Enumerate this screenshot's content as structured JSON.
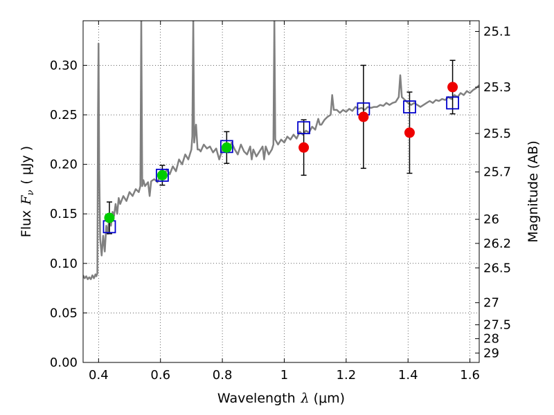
{
  "chart_data": {
    "type": "scatter",
    "xlabel": {
      "prefix": "Wavelength",
      "symbol": "λ",
      "unit": "(μm)"
    },
    "ylabel": {
      "prefix": "Flux",
      "symbol": "F",
      "subscript": "ν",
      "unit": "( μJy )"
    },
    "ylabel_right": "Magnitude (AB)",
    "xlim": [
      0.35,
      1.63
    ],
    "ylim": [
      0.0,
      0.345
    ],
    "grid": true,
    "x_ticks": [
      {
        "value": 0.4,
        "label": "0.4"
      },
      {
        "value": 0.6,
        "label": "0.6"
      },
      {
        "value": 0.8,
        "label": "0.8"
      },
      {
        "value": 1.0,
        "label": "1"
      },
      {
        "value": 1.2,
        "label": "1.2"
      },
      {
        "value": 1.4,
        "label": "1.4"
      },
      {
        "value": 1.6,
        "label": "1.6"
      }
    ],
    "y_ticks": [
      {
        "value": 0.0,
        "label": "0.00"
      },
      {
        "value": 0.05,
        "label": "0.05"
      },
      {
        "value": 0.1,
        "label": "0.10"
      },
      {
        "value": 0.15,
        "label": "0.15"
      },
      {
        "value": 0.2,
        "label": "0.20"
      },
      {
        "value": 0.25,
        "label": "0.25"
      },
      {
        "value": 0.3,
        "label": "0.30"
      }
    ],
    "right_ticks": [
      {
        "flux": 0.3342,
        "label": "25.1"
      },
      {
        "flux": 0.2779,
        "label": "25.3"
      },
      {
        "flux": 0.2312,
        "label": "25.5"
      },
      {
        "flux": 0.1923,
        "label": "25.7"
      },
      {
        "flux": 0.1445,
        "label": "26"
      },
      {
        "flux": 0.1202,
        "label": "26.2"
      },
      {
        "flux": 0.0955,
        "label": "26.5"
      },
      {
        "flux": 0.0603,
        "label": "27"
      },
      {
        "flux": 0.038,
        "label": "27.5"
      },
      {
        "flux": 0.024,
        "label": "28"
      },
      {
        "flux": 0.0095,
        "label": "29"
      }
    ],
    "spectrum": {
      "color": "#808080",
      "points": [
        [
          0.35,
          0.088
        ],
        [
          0.355,
          0.085
        ],
        [
          0.36,
          0.087
        ],
        [
          0.365,
          0.084
        ],
        [
          0.37,
          0.086
        ],
        [
          0.375,
          0.084
        ],
        [
          0.38,
          0.088
        ],
        [
          0.385,
          0.085
        ],
        [
          0.39,
          0.089
        ],
        [
          0.393,
          0.087
        ],
        [
          0.396,
          0.09
        ],
        [
          0.398,
          0.25
        ],
        [
          0.4,
          0.322
        ],
        [
          0.402,
          0.2
        ],
        [
          0.405,
          0.125
        ],
        [
          0.41,
          0.108
        ],
        [
          0.415,
          0.128
        ],
        [
          0.42,
          0.112
        ],
        [
          0.425,
          0.138
        ],
        [
          0.43,
          0.13
        ],
        [
          0.435,
          0.15
        ],
        [
          0.44,
          0.138
        ],
        [
          0.445,
          0.152
        ],
        [
          0.45,
          0.148
        ],
        [
          0.455,
          0.16
        ],
        [
          0.46,
          0.15
        ],
        [
          0.465,
          0.166
        ],
        [
          0.47,
          0.16
        ],
        [
          0.48,
          0.168
        ],
        [
          0.49,
          0.163
        ],
        [
          0.5,
          0.172
        ],
        [
          0.51,
          0.168
        ],
        [
          0.52,
          0.175
        ],
        [
          0.53,
          0.172
        ],
        [
          0.535,
          0.178
        ],
        [
          0.538,
          0.345
        ],
        [
          0.541,
          0.178
        ],
        [
          0.545,
          0.184
        ],
        [
          0.55,
          0.178
        ],
        [
          0.56,
          0.182
        ],
        [
          0.565,
          0.168
        ],
        [
          0.57,
          0.183
        ],
        [
          0.58,
          0.185
        ],
        [
          0.59,
          0.182
        ],
        [
          0.6,
          0.19
        ],
        [
          0.61,
          0.186
        ],
        [
          0.62,
          0.195
        ],
        [
          0.63,
          0.19
        ],
        [
          0.64,
          0.198
        ],
        [
          0.65,
          0.193
        ],
        [
          0.66,
          0.205
        ],
        [
          0.67,
          0.2
        ],
        [
          0.68,
          0.21
        ],
        [
          0.69,
          0.205
        ],
        [
          0.7,
          0.215
        ],
        [
          0.703,
          0.228
        ],
        [
          0.706,
          0.345
        ],
        [
          0.709,
          0.222
        ],
        [
          0.715,
          0.24
        ],
        [
          0.72,
          0.215
        ],
        [
          0.725,
          0.215
        ],
        [
          0.73,
          0.213
        ],
        [
          0.74,
          0.22
        ],
        [
          0.75,
          0.216
        ],
        [
          0.76,
          0.218
        ],
        [
          0.77,
          0.212
        ],
        [
          0.78,
          0.216
        ],
        [
          0.79,
          0.205
        ],
        [
          0.8,
          0.215
        ],
        [
          0.81,
          0.218
        ],
        [
          0.82,
          0.212
        ],
        [
          0.83,
          0.222
        ],
        [
          0.84,
          0.215
        ],
        [
          0.85,
          0.21
        ],
        [
          0.86,
          0.22
        ],
        [
          0.87,
          0.213
        ],
        [
          0.88,
          0.21
        ],
        [
          0.89,
          0.218
        ],
        [
          0.895,
          0.205
        ],
        [
          0.9,
          0.215
        ],
        [
          0.91,
          0.208
        ],
        [
          0.92,
          0.213
        ],
        [
          0.93,
          0.218
        ],
        [
          0.935,
          0.205
        ],
        [
          0.94,
          0.218
        ],
        [
          0.95,
          0.21
        ],
        [
          0.96,
          0.215
        ],
        [
          0.965,
          0.22
        ],
        [
          0.968,
          0.345
        ],
        [
          0.971,
          0.225
        ],
        [
          0.98,
          0.22
        ],
        [
          0.99,
          0.225
        ],
        [
          1.0,
          0.222
        ],
        [
          1.01,
          0.228
        ],
        [
          1.02,
          0.225
        ],
        [
          1.03,
          0.23
        ],
        [
          1.04,
          0.226
        ],
        [
          1.05,
          0.233
        ],
        [
          1.06,
          0.23
        ],
        [
          1.07,
          0.234
        ],
        [
          1.08,
          0.232
        ],
        [
          1.09,
          0.238
        ],
        [
          1.1,
          0.235
        ],
        [
          1.11,
          0.246
        ],
        [
          1.115,
          0.24
        ],
        [
          1.12,
          0.24
        ],
        [
          1.13,
          0.245
        ],
        [
          1.14,
          0.248
        ],
        [
          1.15,
          0.25
        ],
        [
          1.155,
          0.27
        ],
        [
          1.16,
          0.255
        ],
        [
          1.17,
          0.255
        ],
        [
          1.18,
          0.252
        ],
        [
          1.19,
          0.255
        ],
        [
          1.2,
          0.253
        ],
        [
          1.21,
          0.256
        ],
        [
          1.22,
          0.254
        ],
        [
          1.23,
          0.258
        ],
        [
          1.24,
          0.256
        ],
        [
          1.25,
          0.257
        ],
        [
          1.26,
          0.255
        ],
        [
          1.27,
          0.258
        ],
        [
          1.28,
          0.257
        ],
        [
          1.29,
          0.258
        ],
        [
          1.3,
          0.258
        ],
        [
          1.31,
          0.26
        ],
        [
          1.32,
          0.259
        ],
        [
          1.33,
          0.262
        ],
        [
          1.34,
          0.26
        ],
        [
          1.35,
          0.262
        ],
        [
          1.36,
          0.263
        ],
        [
          1.37,
          0.268
        ],
        [
          1.375,
          0.29
        ],
        [
          1.38,
          0.268
        ],
        [
          1.39,
          0.265
        ],
        [
          1.4,
          0.262
        ],
        [
          1.41,
          0.26
        ],
        [
          1.42,
          0.262
        ],
        [
          1.43,
          0.26
        ],
        [
          1.44,
          0.258
        ],
        [
          1.45,
          0.26
        ],
        [
          1.46,
          0.262
        ],
        [
          1.47,
          0.264
        ],
        [
          1.48,
          0.262
        ],
        [
          1.49,
          0.265
        ],
        [
          1.5,
          0.264
        ],
        [
          1.51,
          0.266
        ],
        [
          1.52,
          0.265
        ],
        [
          1.53,
          0.268
        ],
        [
          1.54,
          0.266
        ],
        [
          1.55,
          0.27
        ],
        [
          1.56,
          0.268
        ],
        [
          1.57,
          0.272
        ],
        [
          1.58,
          0.27
        ],
        [
          1.59,
          0.274
        ],
        [
          1.6,
          0.272
        ],
        [
          1.61,
          0.275
        ],
        [
          1.62,
          0.277
        ],
        [
          1.63,
          0.28
        ]
      ]
    },
    "model_photometry": {
      "color": "#0000cc",
      "points": [
        [
          0.435,
          0.137
        ],
        [
          0.606,
          0.189
        ],
        [
          0.814,
          0.218
        ],
        [
          1.063,
          0.237
        ],
        [
          1.256,
          0.256
        ],
        [
          1.405,
          0.258
        ],
        [
          1.544,
          0.262
        ]
      ]
    },
    "observed_green": {
      "color": "#00cc00",
      "points": [
        {
          "x": 0.435,
          "y": 0.146,
          "err": 0.016
        },
        {
          "x": 0.606,
          "y": 0.189,
          "err": 0.01
        },
        {
          "x": 0.814,
          "y": 0.217,
          "err": 0.016
        }
      ]
    },
    "observed_red": {
      "color": "#ee0000",
      "points": [
        {
          "x": 1.063,
          "y": 0.217,
          "err": 0.028
        },
        {
          "x": 1.256,
          "y": 0.248,
          "err": 0.052
        },
        {
          "x": 1.405,
          "y": 0.232,
          "err": 0.041
        },
        {
          "x": 1.544,
          "y": 0.278,
          "err": 0.027
        }
      ]
    }
  }
}
